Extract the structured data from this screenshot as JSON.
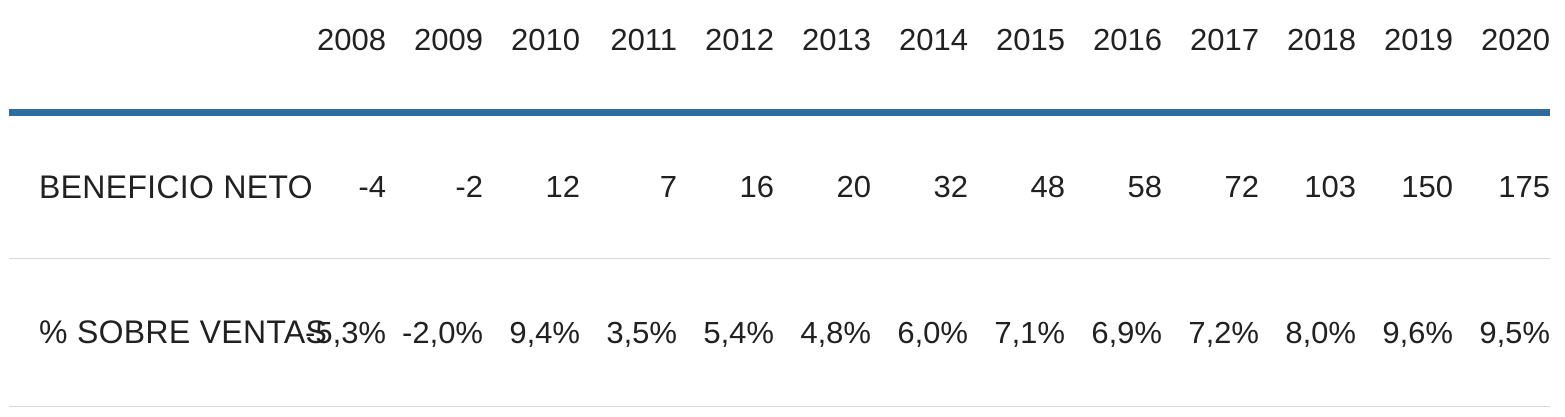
{
  "colors": {
    "header_rule_blue": "#2e6c9e",
    "row_divider_gray": "#d9d9d9",
    "text_dark": "#212121",
    "background": "#ffffff"
  },
  "table": {
    "corner_label": "",
    "years": [
      "2008",
      "2009",
      "2010",
      "2011",
      "2012",
      "2013",
      "2014",
      "2015",
      "2016",
      "2017",
      "2018",
      "2019",
      "2020"
    ],
    "rows": [
      {
        "label": "BENEFICIO NETO",
        "values": [
          "-4",
          "-2",
          "12",
          "7",
          "16",
          "20",
          "32",
          "48",
          "58",
          "72",
          "103",
          "150",
          "175"
        ]
      },
      {
        "label": "% SOBRE VENTAS",
        "values": [
          "-5,3%",
          "-2,0%",
          "9,4%",
          "3,5%",
          "5,4%",
          "4,8%",
          "6,0%",
          "7,1%",
          "6,9%",
          "7,2%",
          "8,0%",
          "9,6%",
          "9,5%"
        ]
      }
    ]
  },
  "chart_data": {
    "type": "table",
    "categories": [
      2008,
      2009,
      2010,
      2011,
      2012,
      2013,
      2014,
      2015,
      2016,
      2017,
      2018,
      2019,
      2020
    ],
    "series": [
      {
        "name": "BENEFICIO NETO",
        "unit": "absolute",
        "values": [
          -4,
          -2,
          12,
          7,
          16,
          20,
          32,
          48,
          58,
          72,
          103,
          150,
          175
        ]
      },
      {
        "name": "% SOBRE VENTAS",
        "unit": "percent",
        "values": [
          -5.3,
          -2.0,
          9.4,
          3.5,
          5.4,
          4.8,
          6.0,
          7.1,
          6.9,
          7.2,
          8.0,
          9.6,
          9.5
        ]
      }
    ],
    "layout": {
      "header_rule_color": "#2e6c9e",
      "row_divider_color": "#d9d9d9",
      "grid": "horizontal-dividers-only",
      "first_column": "row labels, left aligned",
      "value_columns": "right aligned"
    }
  }
}
